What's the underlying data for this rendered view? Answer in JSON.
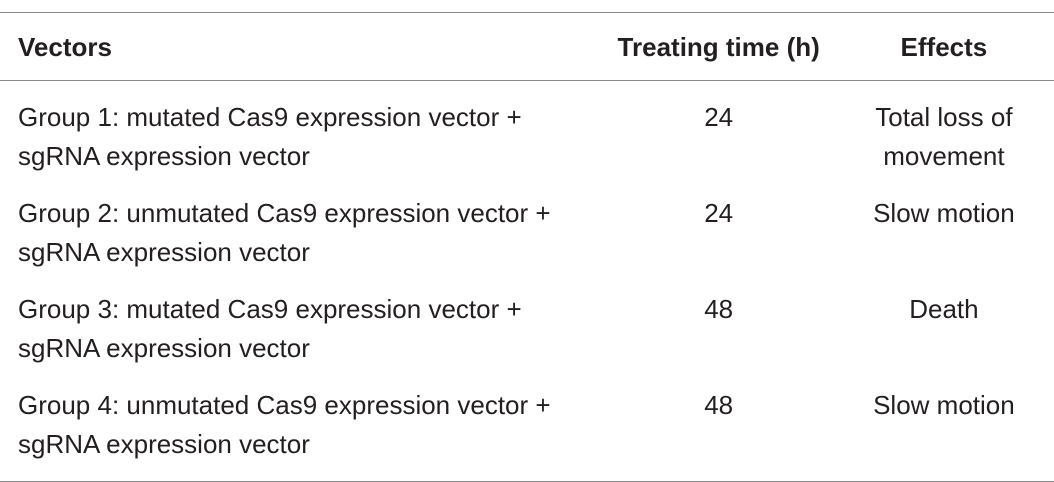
{
  "table": {
    "header": [
      "Vectors",
      "Treating time (h)",
      "Effects"
    ],
    "rows": [
      [
        "Group 1: mutated Cas9 expression vector + sgRNA expression vector",
        "24",
        "Total loss of movement"
      ],
      [
        "Group 2: unmutated Cas9 expression vector + sgRNA expression vector",
        "24",
        "Slow motion"
      ],
      [
        "Group 3: mutated Cas9 expression vector + sgRNA expression vector",
        "48",
        "Death"
      ],
      [
        "Group 4: unmutated Cas9 expression vector + sgRNA expression vector",
        "48",
        "Slow motion"
      ]
    ]
  }
}
